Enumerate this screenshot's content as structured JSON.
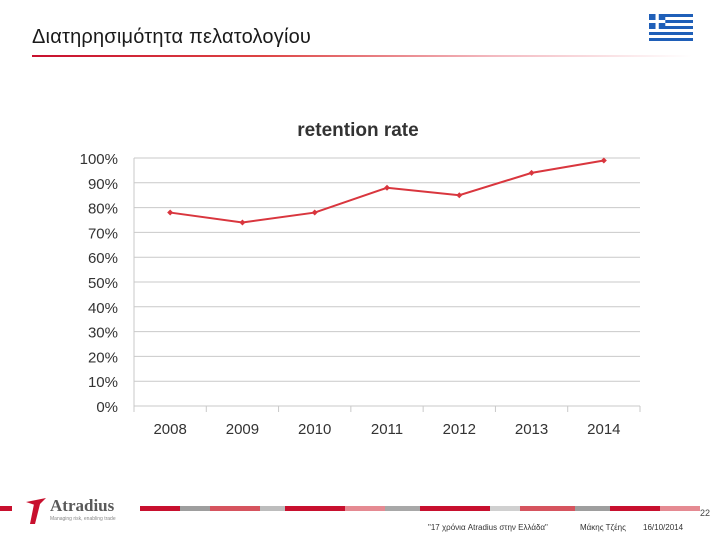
{
  "slide": {
    "title": "Διατηρησιμότητα πελατολογίου",
    "page_number": "22"
  },
  "footer": {
    "logo_name": "Atradius",
    "logo_tagline": "Managing risk, enabling trade",
    "event": "\"17 χρόνια Atradius στην Ελλάδα\"",
    "presenter": "Μάκης Τζέης",
    "date": "16/10/2014"
  },
  "colors": {
    "accent": "#c8102e",
    "line": "#d9363e",
    "flag_blue": "#1f5fb8"
  },
  "icons": {
    "flag": "greek-flag-icon",
    "logo_mark": "atradius-logo-icon"
  },
  "chart_data": {
    "type": "line",
    "title": "retention rate",
    "xlabel": "",
    "ylabel": "",
    "categories": [
      "2008",
      "2009",
      "2010",
      "2011",
      "2012",
      "2013",
      "2014"
    ],
    "series": [
      {
        "values": [
          0.78,
          0.74,
          0.78,
          0.88,
          0.85,
          0.94,
          0.99
        ]
      }
    ],
    "ylim": [
      0,
      1
    ],
    "yticks": [
      "0%",
      "10%",
      "20%",
      "30%",
      "40%",
      "50%",
      "60%",
      "70%",
      "80%",
      "90%",
      "100%"
    ],
    "grid": true,
    "legend": "none"
  }
}
